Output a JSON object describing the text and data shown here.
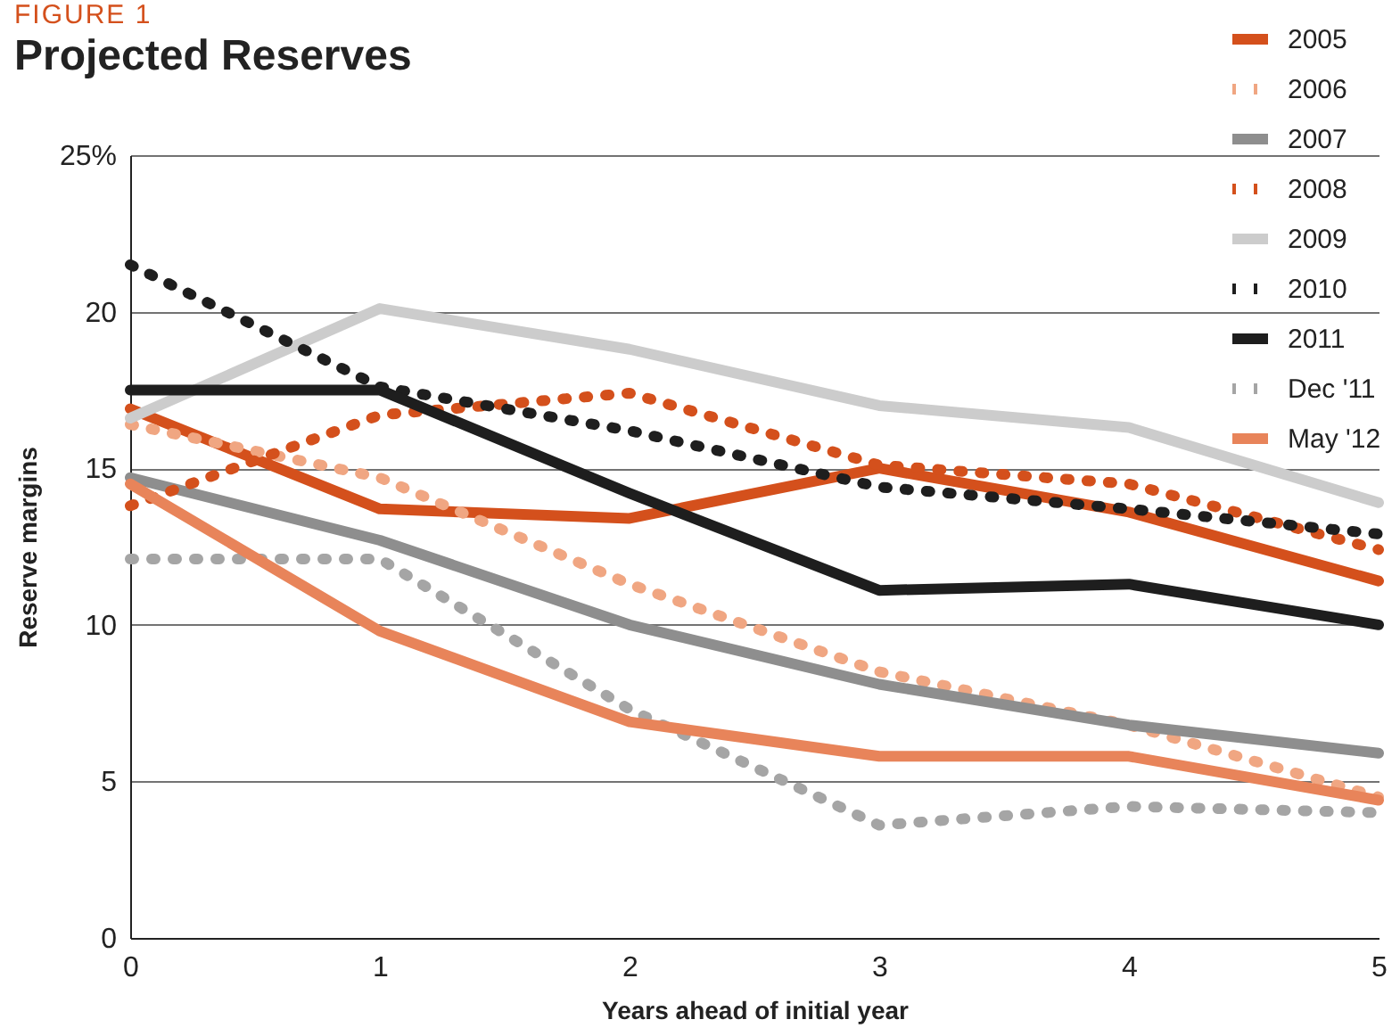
{
  "chart_data": {
    "type": "line",
    "title": "Projected Reserves",
    "annotations": [
      "FIGURE 1"
    ],
    "xlabel": "Years ahead of initial year",
    "ylabel": "Reserve margins",
    "x": [
      0,
      1,
      2,
      3,
      4,
      5
    ],
    "xlim": [
      0,
      5
    ],
    "xticks": [
      0,
      1,
      2,
      3,
      4,
      5
    ],
    "ylim": [
      0,
      25
    ],
    "yticks": [
      0,
      5,
      10,
      15,
      20,
      {
        "value": 25,
        "label": "25%"
      }
    ],
    "grid": "y",
    "legend": "top right",
    "series": [
      {
        "name": "2005",
        "color": "#d4501c",
        "line_style": "solid",
        "values": [
          16.9,
          13.7,
          13.4,
          15.0,
          13.6,
          11.4
        ]
      },
      {
        "name": "2006",
        "color": "#f0a682",
        "line_style": "dotted",
        "values": [
          16.4,
          14.7,
          11.3,
          8.5,
          6.8,
          4.5
        ]
      },
      {
        "name": "2007",
        "color": "#8e8e8e",
        "line_style": "solid",
        "values": [
          14.7,
          12.7,
          10.0,
          8.1,
          6.8,
          5.9
        ]
      },
      {
        "name": "2008",
        "color": "#d4501c",
        "line_style": "dotted",
        "values": [
          13.8,
          16.7,
          17.4,
          15.1,
          14.5,
          12.4
        ]
      },
      {
        "name": "2009",
        "color": "#cccccc",
        "line_style": "solid",
        "values": [
          16.6,
          20.1,
          18.8,
          17.0,
          16.3,
          13.9
        ]
      },
      {
        "name": "2010",
        "color": "#1e1e1e",
        "line_style": "dotted",
        "values": [
          21.5,
          17.6,
          16.2,
          14.4,
          13.7,
          12.9
        ]
      },
      {
        "name": "2011",
        "color": "#1e1e1e",
        "line_style": "solid",
        "values": [
          17.5,
          17.5,
          14.2,
          11.1,
          11.3,
          10.0
        ]
      },
      {
        "name": "Dec '11",
        "color": "#a5a5a5",
        "line_style": "dotted",
        "values": [
          12.1,
          12.1,
          7.3,
          3.6,
          4.2,
          4.0
        ]
      },
      {
        "name": "May '12",
        "color": "#e8845a",
        "line_style": "solid",
        "values": [
          14.5,
          9.8,
          6.9,
          5.8,
          5.8,
          4.4
        ]
      }
    ]
  }
}
